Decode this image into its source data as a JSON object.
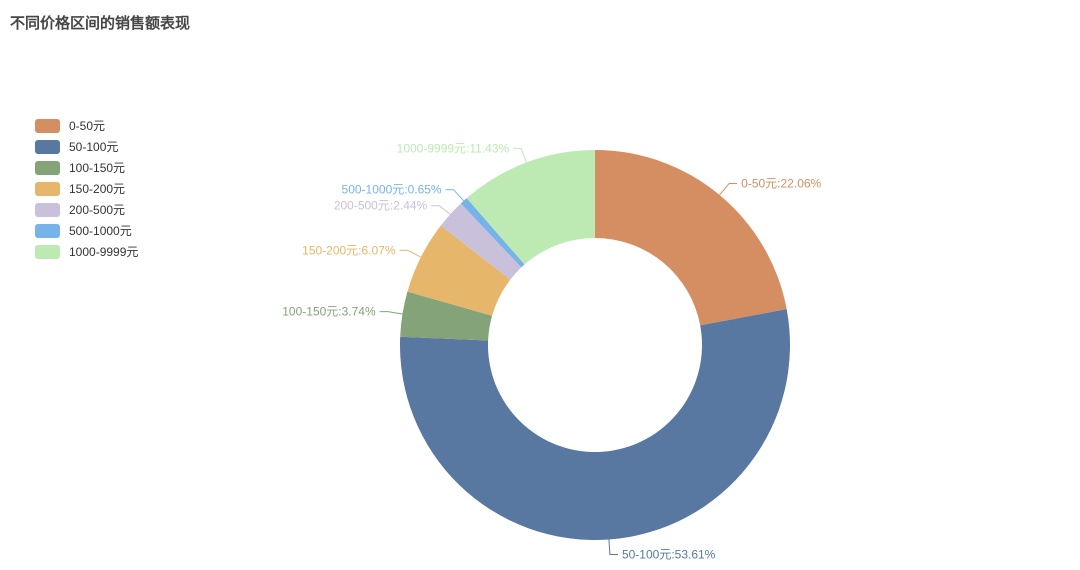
{
  "page": {
    "background": "#ffffff"
  },
  "chart_data": {
    "type": "pie",
    "subtype": "donut",
    "title": "不同价格区间的销售额表现",
    "legend_position": "left-vertical",
    "label_format": "{name}:{percent}%",
    "inner_radius_ratio": 0.55,
    "legend_items": [
      "0-50元",
      "50-100元",
      "100-150元",
      "150-200元",
      "200-500元",
      "500-1000元",
      "1000-9999元"
    ],
    "series": [
      {
        "name": "0-50元",
        "percent": 22.06,
        "label": "0-50元:22.06%",
        "color": "#d48e62"
      },
      {
        "name": "50-100元",
        "percent": 53.61,
        "label": "50-100元:53.61%",
        "color": "#5878a2"
      },
      {
        "name": "100-150元",
        "percent": 3.74,
        "label": "100-150元:3.74%",
        "color": "#84a378"
      },
      {
        "name": "150-200元",
        "percent": 6.07,
        "label": "150-200元:6.07%",
        "color": "#e6b76a"
      },
      {
        "name": "200-500元",
        "percent": 2.44,
        "label": "200-500元:2.44%",
        "color": "#c9c0dc"
      },
      {
        "name": "500-1000元",
        "percent": 0.65,
        "label": "500-1000元:0.65%",
        "color": "#77b3e8"
      },
      {
        "name": "1000-9999元",
        "percent": 11.43,
        "label": "1000-9999元:11.43%",
        "color": "#bdeab2"
      }
    ]
  }
}
